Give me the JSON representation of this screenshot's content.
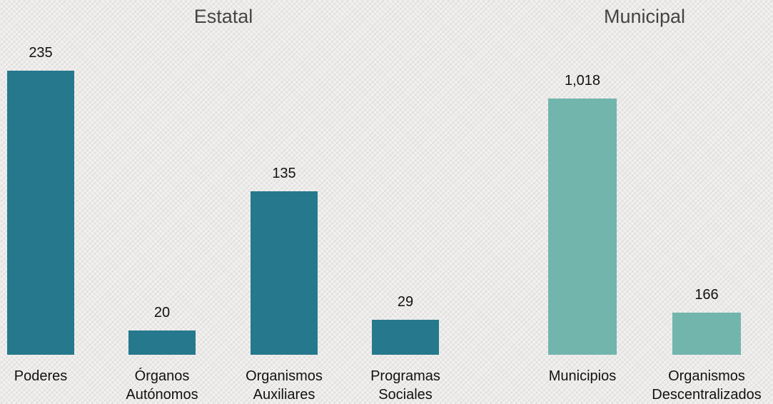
{
  "chart_data": [
    {
      "type": "bar",
      "title": "Estatal",
      "categories": [
        "Poderes",
        "Órganos Autónomos",
        "Organismos Auxiliares",
        "Programas Sociales"
      ],
      "values": [
        235,
        20,
        135,
        29
      ],
      "color": "#26788d"
    },
    {
      "type": "bar",
      "title": "Municipal",
      "categories": [
        "Municipios",
        "Organismos Descentralizados"
      ],
      "values": [
        1018,
        166
      ],
      "value_labels": [
        "1,018",
        "166"
      ],
      "color": "#72b5ad"
    }
  ]
}
